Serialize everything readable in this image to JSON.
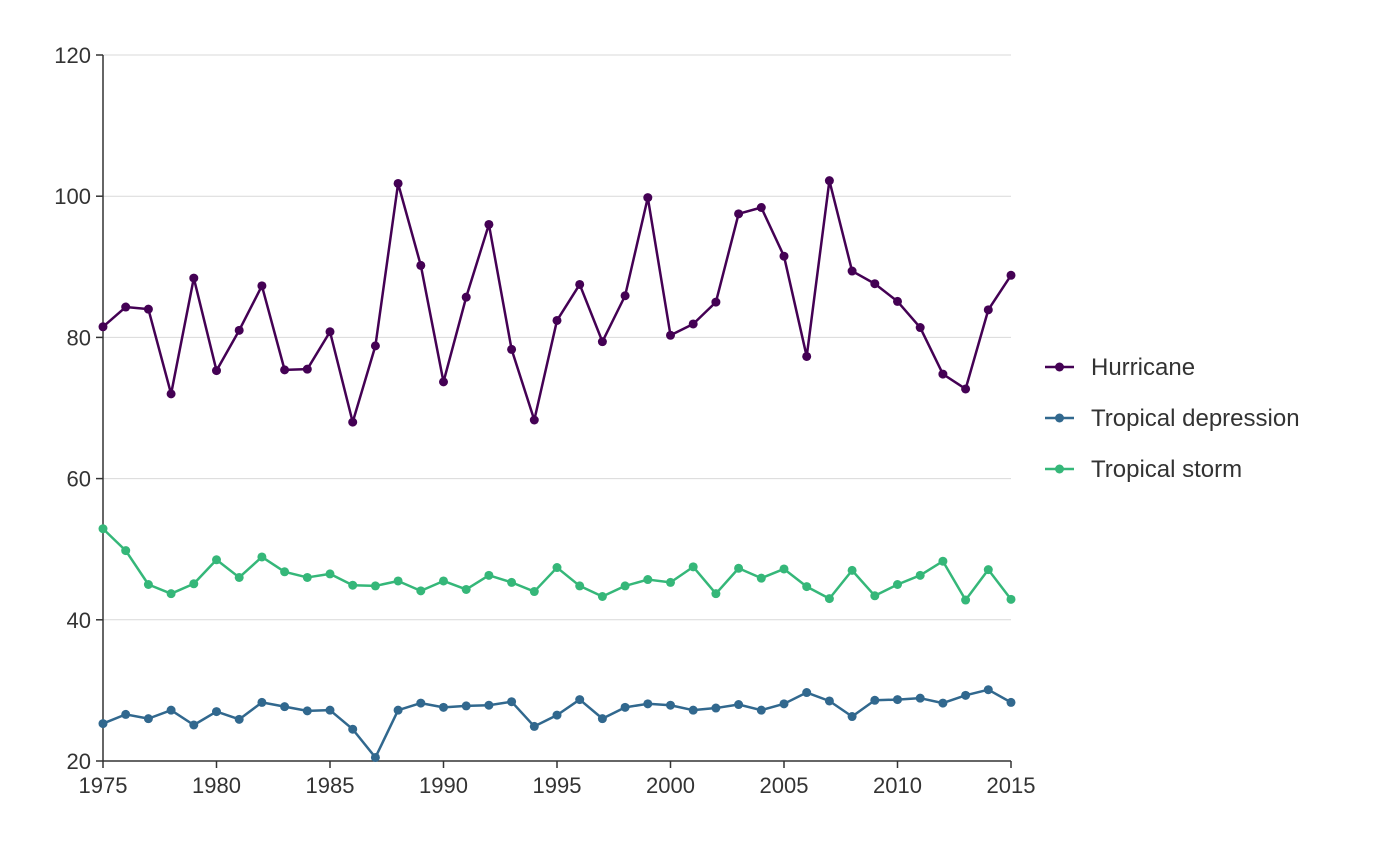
{
  "chart_data": {
    "type": "line",
    "title": "",
    "xlabel": "",
    "ylabel": "",
    "xlim": [
      1975,
      2015
    ],
    "ylim": [
      20,
      120
    ],
    "x_ticks": [
      "1975",
      "1980",
      "1985",
      "1990",
      "1995",
      "2000",
      "2005",
      "2010",
      "2015"
    ],
    "y_ticks": [
      "20",
      "40",
      "60",
      "80",
      "100",
      "120"
    ],
    "grid": "horizontal",
    "legend_position": "right",
    "x": [
      1975,
      1976,
      1977,
      1978,
      1979,
      1980,
      1981,
      1982,
      1983,
      1984,
      1985,
      1986,
      1987,
      1988,
      1989,
      1990,
      1991,
      1992,
      1993,
      1994,
      1995,
      1996,
      1997,
      1998,
      1999,
      2000,
      2001,
      2002,
      2003,
      2004,
      2005,
      2006,
      2007,
      2008,
      2009,
      2010,
      2011,
      2012,
      2013,
      2014,
      2015
    ],
    "series": [
      {
        "name": "Hurricane",
        "color": "#440154",
        "values": [
          81.5,
          84.3,
          84.0,
          72.0,
          88.4,
          75.3,
          81.0,
          87.3,
          75.4,
          75.5,
          80.8,
          68.0,
          78.8,
          101.8,
          90.2,
          73.7,
          85.7,
          96.0,
          78.3,
          68.3,
          82.4,
          87.5,
          79.4,
          85.9,
          99.8,
          80.3,
          81.9,
          85.0,
          97.5,
          98.4,
          91.5,
          77.3,
          102.2,
          89.4,
          87.6,
          85.1,
          81.4,
          74.8,
          72.7,
          83.9,
          88.8
        ]
      },
      {
        "name": "Tropical depression",
        "color": "#31688e",
        "values": [
          25.3,
          26.6,
          26.0,
          27.2,
          25.1,
          27.0,
          25.9,
          28.3,
          27.7,
          27.1,
          27.2,
          24.5,
          20.5,
          27.2,
          28.2,
          27.6,
          27.8,
          27.9,
          28.4,
          24.9,
          26.5,
          28.7,
          26.0,
          27.6,
          28.1,
          27.9,
          27.2,
          27.5,
          28.0,
          27.2,
          28.1,
          29.7,
          28.5,
          26.3,
          28.6,
          28.7,
          28.9,
          28.2,
          29.3,
          30.1,
          28.3
        ]
      },
      {
        "name": "Tropical storm",
        "color": "#35b779",
        "values": [
          52.9,
          49.8,
          45.0,
          43.7,
          45.1,
          48.5,
          46.0,
          48.9,
          46.8,
          46.0,
          46.5,
          44.9,
          44.8,
          45.5,
          44.1,
          45.5,
          44.3,
          46.3,
          45.3,
          44.0,
          47.4,
          44.8,
          43.3,
          44.8,
          45.7,
          45.3,
          47.5,
          43.7,
          47.3,
          45.9,
          47.2,
          44.7,
          43.0,
          47.0,
          43.4,
          45.0,
          46.3,
          48.3,
          42.8,
          47.1,
          42.9
        ]
      }
    ]
  }
}
